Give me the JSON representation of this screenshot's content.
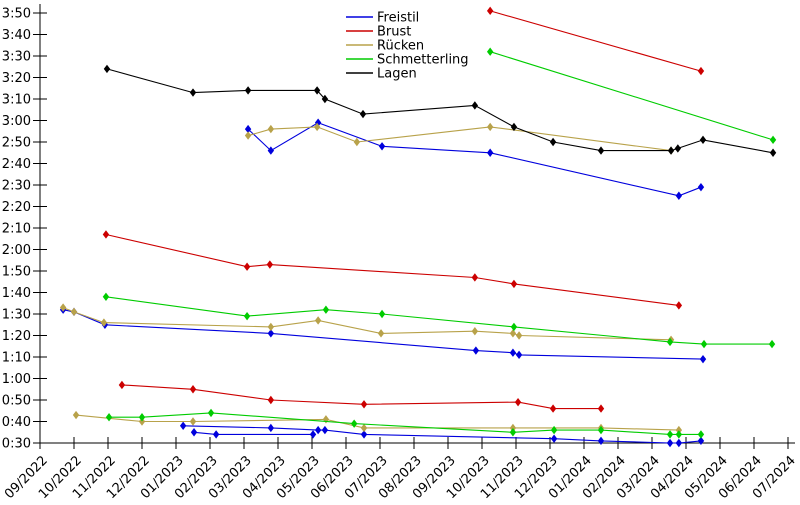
{
  "page": {
    "background": "#ffffff"
  },
  "chart_data": {
    "type": "line",
    "title": "",
    "grid": false,
    "axis_color": "#000000",
    "x_axis": {
      "unit": "month/year",
      "label_rotation_deg": -45,
      "tick_labels": [
        "09/2022",
        "10/2022",
        "11/2022",
        "12/2022",
        "01/2023",
        "02/2023",
        "03/2023",
        "04/2023",
        "05/2023",
        "06/2023",
        "07/2023",
        "08/2023",
        "09/2023",
        "10/2023",
        "11/2023",
        "12/2023",
        "01/2024",
        "02/2024",
        "03/2024",
        "04/2024",
        "05/2024",
        "06/2024",
        "07/2024"
      ]
    },
    "y_axis": {
      "unit": "min:sec",
      "min": "0:30",
      "max": "3:50",
      "tick_step_seconds": 10,
      "tick_labels": [
        "0:30",
        "0:40",
        "0:50",
        "1:00",
        "1:10",
        "1:20",
        "1:30",
        "1:40",
        "1:50",
        "2:00",
        "2:10",
        "2:20",
        "2:30",
        "2:40",
        "2:50",
        "3:00",
        "3:10",
        "3:20",
        "3:30",
        "3:40",
        "3:50"
      ]
    },
    "legend": {
      "position": "top-inside",
      "frame": false,
      "entries": [
        {
          "key": "freistil",
          "label": "Freistil",
          "color": "#0000dd"
        },
        {
          "key": "brust",
          "label": "Brust",
          "color": "#cc0000"
        },
        {
          "key": "ruecken",
          "label": "Rücken",
          "color": "#b8a24a"
        },
        {
          "key": "schmetterling",
          "label": "Schmetterling",
          "color": "#00cc00"
        },
        {
          "key": "lagen",
          "label": "Lagen",
          "color": "#000000"
        }
      ]
    },
    "point_encoding": "x_m = months after 09/2022 tick (estimated from plot); time = value read from y-axis (mm:ss)",
    "series": [
      {
        "key": "freistil",
        "name": "Freistil",
        "color": "#0000dd",
        "marker": "diamond",
        "segments": [
          [
            {
              "x_m": 6.12,
              "time": "2:56"
            },
            {
              "x_m": 6.79,
              "time": "2:46"
            },
            {
              "x_m": 8.18,
              "time": "2:59"
            },
            {
              "x_m": 10.06,
              "time": "2:48"
            },
            {
              "x_m": 13.24,
              "time": "2:45"
            },
            {
              "x_m": 18.79,
              "time": "2:25"
            },
            {
              "x_m": 19.44,
              "time": "2:29"
            }
          ],
          [
            {
              "x_m": 0.68,
              "time": "1:32"
            },
            {
              "x_m": 1.0,
              "time": "1:31"
            },
            {
              "x_m": 1.91,
              "time": "1:25"
            },
            {
              "x_m": 6.79,
              "time": "1:21"
            },
            {
              "x_m": 12.82,
              "time": "1:13"
            },
            {
              "x_m": 13.91,
              "time": "1:12"
            },
            {
              "x_m": 14.09,
              "time": "1:11"
            },
            {
              "x_m": 19.5,
              "time": "1:09"
            }
          ],
          [
            {
              "x_m": 4.21,
              "time": "0:38"
            },
            {
              "x_m": 6.79,
              "time": "0:37"
            },
            {
              "x_m": 8.18,
              "time": "0:36"
            },
            {
              "x_m": 8.38,
              "time": "0:36"
            },
            {
              "x_m": 9.53,
              "time": "0:34"
            },
            {
              "x_m": 15.12,
              "time": "0:32"
            },
            {
              "x_m": 16.5,
              "time": "0:31"
            },
            {
              "x_m": 18.53,
              "time": "0:30"
            },
            {
              "x_m": 18.79,
              "time": "0:30"
            },
            {
              "x_m": 19.44,
              "time": "0:31"
            }
          ],
          [
            {
              "x_m": 4.53,
              "time": "0:35"
            },
            {
              "x_m": 5.18,
              "time": "0:34"
            },
            {
              "x_m": 8.03,
              "time": "0:34"
            }
          ]
        ]
      },
      {
        "key": "brust",
        "name": "Brust",
        "color": "#cc0000",
        "marker": "diamond",
        "segments": [
          [
            {
              "x_m": 13.24,
              "time": "3:51"
            },
            {
              "x_m": 19.44,
              "time": "3:23"
            }
          ],
          [
            {
              "x_m": 1.94,
              "time": "2:07"
            },
            {
              "x_m": 6.09,
              "time": "1:52"
            },
            {
              "x_m": 6.76,
              "time": "1:53"
            },
            {
              "x_m": 12.79,
              "time": "1:47"
            },
            {
              "x_m": 13.94,
              "time": "1:44"
            },
            {
              "x_m": 18.79,
              "time": "1:34"
            }
          ],
          [
            {
              "x_m": 2.41,
              "time": "0:57"
            },
            {
              "x_m": 4.5,
              "time": "0:55"
            },
            {
              "x_m": 6.79,
              "time": "0:50"
            },
            {
              "x_m": 9.53,
              "time": "0:48"
            },
            {
              "x_m": 14.06,
              "time": "0:49"
            },
            {
              "x_m": 15.09,
              "time": "0:46"
            },
            {
              "x_m": 16.5,
              "time": "0:46"
            }
          ]
        ]
      },
      {
        "key": "ruecken",
        "name": "Rücken",
        "color": "#b8a24a",
        "marker": "diamond",
        "segments": [
          [
            {
              "x_m": 6.12,
              "time": "2:53"
            },
            {
              "x_m": 6.79,
              "time": "2:56"
            },
            {
              "x_m": 8.15,
              "time": "2:57"
            },
            {
              "x_m": 9.32,
              "time": "2:50"
            },
            {
              "x_m": 13.24,
              "time": "2:57"
            },
            {
              "x_m": 18.56,
              "time": "2:46"
            }
          ],
          [
            {
              "x_m": 0.68,
              "time": "1:33"
            },
            {
              "x_m": 1.0,
              "time": "1:31"
            },
            {
              "x_m": 1.88,
              "time": "1:26"
            },
            {
              "x_m": 6.79,
              "time": "1:24"
            },
            {
              "x_m": 8.18,
              "time": "1:27"
            },
            {
              "x_m": 10.03,
              "time": "1:21"
            },
            {
              "x_m": 12.79,
              "time": "1:22"
            },
            {
              "x_m": 13.91,
              "time": "1:21"
            },
            {
              "x_m": 14.09,
              "time": "1:20"
            },
            {
              "x_m": 18.56,
              "time": "1:18"
            }
          ],
          [
            {
              "x_m": 1.06,
              "time": "0:43"
            },
            {
              "x_m": 3.0,
              "time": "0:40"
            },
            {
              "x_m": 4.5,
              "time": "0:40"
            },
            {
              "x_m": 8.41,
              "time": "0:41"
            },
            {
              "x_m": 9.53,
              "time": "0:37"
            },
            {
              "x_m": 13.91,
              "time": "0:37"
            },
            {
              "x_m": 16.5,
              "time": "0:37"
            },
            {
              "x_m": 18.79,
              "time": "0:36"
            }
          ]
        ]
      },
      {
        "key": "schmetterling",
        "name": "Schmetterling",
        "color": "#00cc00",
        "marker": "diamond",
        "segments": [
          [
            {
              "x_m": 13.24,
              "time": "3:32"
            },
            {
              "x_m": 21.56,
              "time": "2:51"
            }
          ],
          [
            {
              "x_m": 1.94,
              "time": "1:38"
            },
            {
              "x_m": 6.09,
              "time": "1:29"
            },
            {
              "x_m": 8.41,
              "time": "1:32"
            },
            {
              "x_m": 10.06,
              "time": "1:30"
            },
            {
              "x_m": 13.94,
              "time": "1:24"
            },
            {
              "x_m": 18.53,
              "time": "1:17"
            },
            {
              "x_m": 19.53,
              "time": "1:16"
            },
            {
              "x_m": 21.53,
              "time": "1:16"
            }
          ],
          [
            {
              "x_m": 2.03,
              "time": "0:42"
            },
            {
              "x_m": 3.0,
              "time": "0:42"
            },
            {
              "x_m": 5.03,
              "time": "0:44"
            },
            {
              "x_m": 9.24,
              "time": "0:39"
            },
            {
              "x_m": 13.91,
              "time": "0:35"
            },
            {
              "x_m": 15.12,
              "time": "0:36"
            },
            {
              "x_m": 16.5,
              "time": "0:36"
            },
            {
              "x_m": 18.53,
              "time": "0:34"
            },
            {
              "x_m": 18.79,
              "time": "0:34"
            },
            {
              "x_m": 19.44,
              "time": "0:34"
            }
          ]
        ]
      },
      {
        "key": "lagen",
        "name": "Lagen",
        "color": "#000000",
        "marker": "diamond",
        "segments": [
          [
            {
              "x_m": 1.97,
              "time": "3:24"
            },
            {
              "x_m": 4.5,
              "time": "3:13"
            },
            {
              "x_m": 6.12,
              "time": "3:14"
            },
            {
              "x_m": 8.15,
              "time": "3:14"
            },
            {
              "x_m": 8.38,
              "time": "3:10"
            },
            {
              "x_m": 9.5,
              "time": "3:03"
            },
            {
              "x_m": 12.79,
              "time": "3:07"
            },
            {
              "x_m": 13.94,
              "time": "2:57"
            },
            {
              "x_m": 15.09,
              "time": "2:50"
            },
            {
              "x_m": 16.5,
              "time": "2:46"
            },
            {
              "x_m": 18.56,
              "time": "2:46"
            },
            {
              "x_m": 18.76,
              "time": "2:47"
            },
            {
              "x_m": 19.5,
              "time": "2:51"
            },
            {
              "x_m": 21.56,
              "time": "2:45"
            }
          ]
        ]
      }
    ]
  }
}
